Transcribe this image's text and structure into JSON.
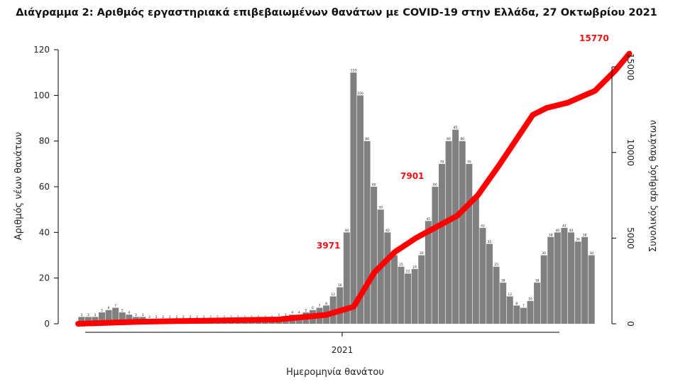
{
  "chart_data": {
    "type": "bar",
    "title": "Διάγραμμα 2: Αριθμός εργαστηριακά επιβεβαιωμένων θανάτων με COVID-19 στην Ελλάδα, 27 Οκτωβρίου 2021",
    "xlabel": "Ημερομηνία θανάτου",
    "ylabel": "Αριθμός νέων θανάτων",
    "y2label": "Συνολικός αριθμός θανάτων",
    "x_tick_labels": [
      "2021"
    ],
    "ylim": [
      0,
      120
    ],
    "y_ticks": [
      0,
      20,
      40,
      60,
      80,
      100,
      120
    ],
    "y2lim": [
      0,
      16000
    ],
    "y2_ticks": [
      0,
      5000,
      10000,
      15000
    ],
    "grid": false,
    "series": [
      {
        "type": "bar",
        "color": "#808080",
        "daily_deaths_weekly": [
          3,
          3,
          3,
          5,
          6,
          7,
          5,
          4,
          3,
          3,
          2,
          2,
          2,
          2,
          2,
          2,
          2,
          2,
          2,
          2,
          2,
          2,
          2,
          2,
          2,
          2,
          2,
          2,
          2,
          3,
          3,
          4,
          4,
          5,
          6,
          7,
          8,
          12,
          16,
          40,
          110,
          100,
          80,
          60,
          50,
          40,
          30,
          25,
          22,
          24,
          30,
          45,
          60,
          70,
          80,
          85,
          80,
          70,
          55,
          42,
          35,
          25,
          18,
          12,
          8,
          7,
          10,
          18,
          30,
          38,
          40,
          42,
          40,
          36,
          38,
          30
        ]
      },
      {
        "type": "line",
        "color": "#ff0000",
        "axis": "right",
        "cumulative_deaths_points": [
          [
            0,
            0
          ],
          [
            9,
            120
          ],
          [
            29,
            250
          ],
          [
            36,
            520
          ],
          [
            40,
            1000
          ],
          [
            43,
            3000
          ],
          [
            46,
            4200
          ],
          [
            49,
            5000
          ],
          [
            52,
            5650
          ],
          [
            55,
            6300
          ],
          [
            58,
            7500
          ],
          [
            61,
            9200
          ],
          [
            64,
            11000
          ],
          [
            66,
            12200
          ],
          [
            68,
            12600
          ],
          [
            71,
            12900
          ],
          [
            75,
            13600
          ],
          [
            78,
            14800
          ],
          [
            80,
            15770
          ]
        ]
      }
    ],
    "annotations": [
      "3971",
      "7901",
      "15770"
    ]
  }
}
